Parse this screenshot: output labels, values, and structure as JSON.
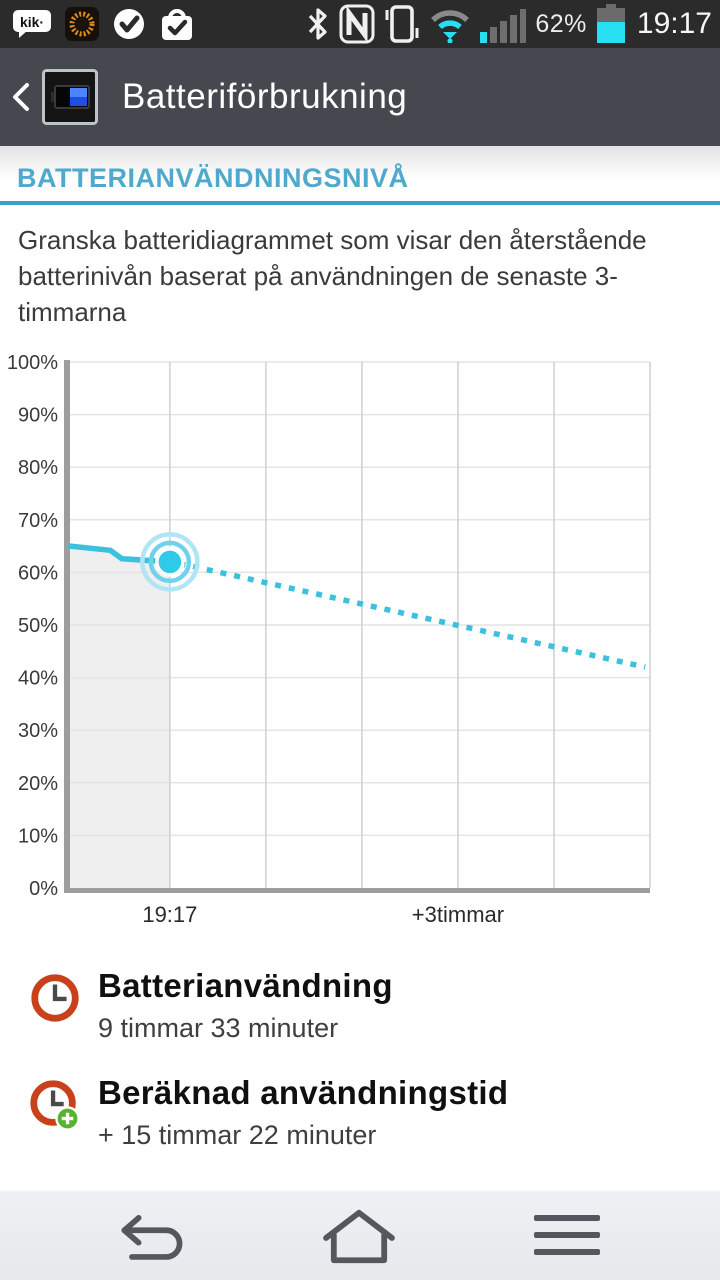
{
  "status_bar": {
    "battery_percent": "62%",
    "time": "19:17",
    "icons_left": [
      "kik-icon",
      "sun-icon",
      "check-circle-icon",
      "shopping-bag-icon"
    ],
    "icons_right": [
      "bluetooth-icon",
      "nfc-icon",
      "vibrate-icon",
      "wifi-icon",
      "signal-icon",
      "battery-icon"
    ]
  },
  "header": {
    "title": "Batteriförbrukning",
    "icons": [
      "back-chevron-icon",
      "battery-app-icon"
    ]
  },
  "section": {
    "title": "BATTERIANVÄNDNINGSNIVÅ",
    "description": "Granska batteridiagrammet som visar den återstående batterinivån baserat på användningen de senaste 3-timmarna"
  },
  "chart_data": {
    "type": "line",
    "title": "",
    "xlabel": "",
    "ylabel": "",
    "ylim": [
      0,
      100
    ],
    "ytick_step": 10,
    "ytick_suffix": "%",
    "x_unit": "hours_from_now",
    "x_range": [
      -1.04,
      5.0
    ],
    "x_gridline_hours": [
      0,
      1,
      2,
      3,
      4,
      5
    ],
    "x_ticks": [
      {
        "hour": 0,
        "label": "19:17"
      },
      {
        "hour": 3,
        "label": "+3timmar"
      }
    ],
    "series": [
      {
        "name": "battery-history",
        "style": "solid",
        "area_fill": true,
        "points": [
          [
            -1.04,
            65
          ],
          [
            -0.62,
            64.2
          ],
          [
            -0.5,
            62.6
          ],
          [
            0,
            62
          ]
        ]
      },
      {
        "name": "battery-projection",
        "style": "dotted",
        "points": [
          [
            0.1,
            61.7
          ],
          [
            4.95,
            42
          ]
        ]
      }
    ],
    "marker": {
      "hour": 0,
      "percent": 62
    },
    "grid": true,
    "legend": false,
    "colors": {
      "line": "#3cc0de",
      "marker_fill": "#2fc9ea",
      "marker_ring_inner": "#6fd2ec",
      "marker_ring_outer": "#b2e5f4",
      "area_fill": "#f0eff0",
      "grid_h": "#e4e4e4",
      "grid_v": "#cfcfcf",
      "axis": "#9d9d9d",
      "tick_text": "#3a3a3a"
    }
  },
  "stats": [
    {
      "icon": "clock-icon",
      "title": "Batterianvändning",
      "value": "9 timmar 33 minuter"
    },
    {
      "icon": "clock-plus-icon",
      "title": "Beräknad användningstid",
      "value": "+ 15 timmar 22 minuter"
    }
  ],
  "nav_bar": {
    "items": [
      "back",
      "home",
      "menu"
    ]
  }
}
